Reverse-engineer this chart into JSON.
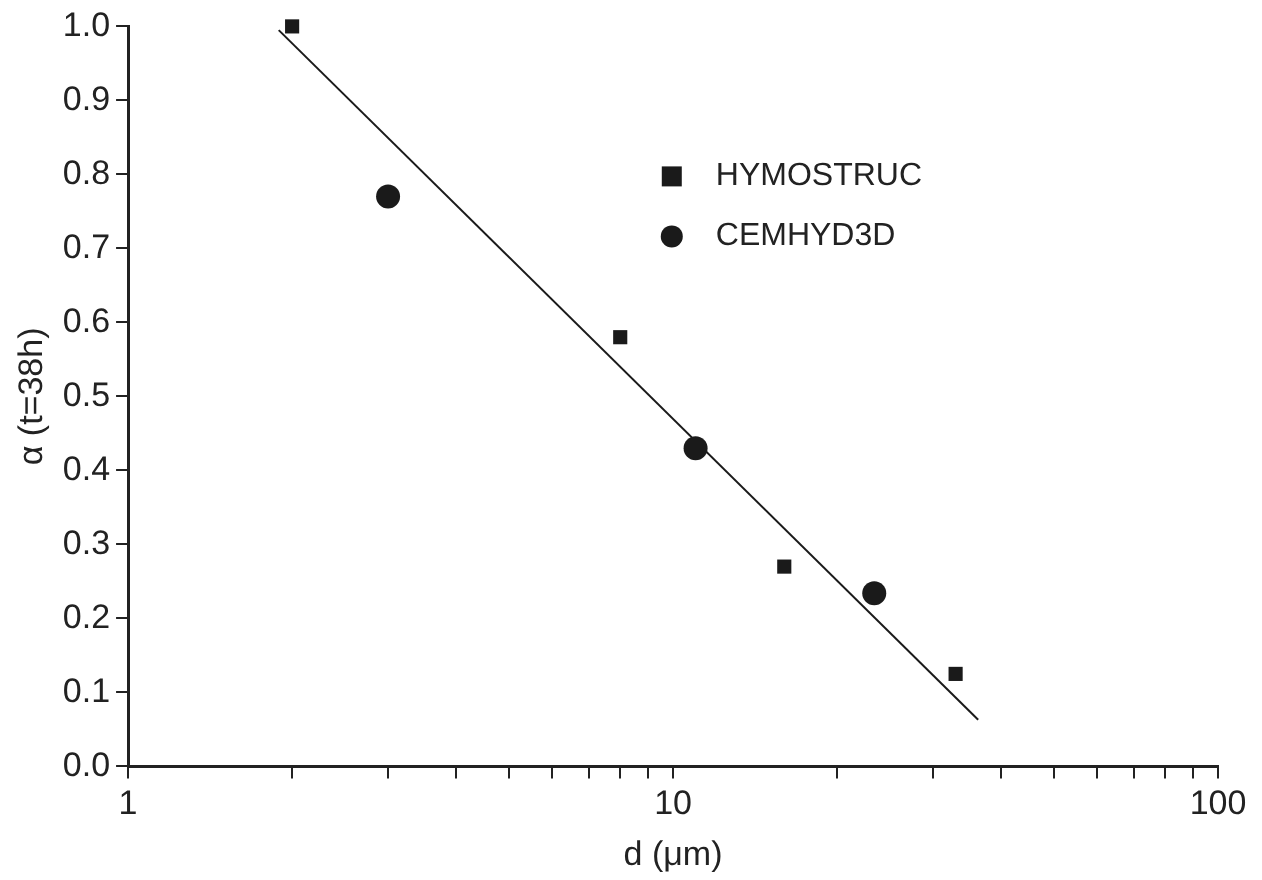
{
  "chart_data": {
    "type": "scatter",
    "xlabel": "d (μm)",
    "ylabel": "α (t=38h)",
    "log": "x",
    "xlim": [
      1,
      100
    ],
    "xticks": [
      {
        "value": 1,
        "label": "1"
      },
      {
        "value": 2,
        "label": null
      },
      {
        "value": 3,
        "label": null
      },
      {
        "value": 4,
        "label": null
      },
      {
        "value": 5,
        "label": null
      },
      {
        "value": 6,
        "label": null
      },
      {
        "value": 7,
        "label": null
      },
      {
        "value": 8,
        "label": null
      },
      {
        "value": 9,
        "label": null
      },
      {
        "value": 10,
        "label": "10"
      },
      {
        "value": 20,
        "label": null
      },
      {
        "value": 30,
        "label": null
      },
      {
        "value": 40,
        "label": null
      },
      {
        "value": 50,
        "label": null
      },
      {
        "value": 60,
        "label": null
      },
      {
        "value": 70,
        "label": null
      },
      {
        "value": 80,
        "label": null
      },
      {
        "value": 90,
        "label": null
      },
      {
        "value": 100,
        "label": "100"
      }
    ],
    "ylim": [
      0,
      1
    ],
    "yticks": [
      {
        "value": 0,
        "label": "0.0"
      },
      {
        "value": 0.1,
        "label": "0.1"
      },
      {
        "value": 0.2,
        "label": "0.2"
      },
      {
        "value": 0.3,
        "label": "0.3"
      },
      {
        "value": 0.4,
        "label": "0.4"
      },
      {
        "value": 0.5,
        "label": "0.5"
      },
      {
        "value": 0.6,
        "label": "0.6"
      },
      {
        "value": 0.7,
        "label": "0.7"
      },
      {
        "value": 0.8,
        "label": "0.8"
      },
      {
        "value": 0.9,
        "label": "0.9"
      },
      {
        "value": 1,
        "label": "1.0"
      }
    ],
    "grid": false,
    "legend": "top right",
    "series": [
      {
        "name": "HYMOSTRUC",
        "color": "#1a1a1a",
        "marker": "square",
        "x": [
          2,
          8,
          16,
          33
        ],
        "values": [
          1.0,
          0.58,
          0.27,
          0.125
        ]
      },
      {
        "name": "CEMHYD3D",
        "color": "#1a1a1a",
        "marker": "circle",
        "x": [
          3,
          11,
          23.4
        ],
        "values": [
          0.77,
          0.43,
          0.234
        ]
      },
      {
        "type": "line",
        "color": "#1a1a1a",
        "marker": "none",
        "x": [
          1.89,
          36.3
        ],
        "values": [
          0.995,
          0.063
        ]
      }
    ]
  }
}
